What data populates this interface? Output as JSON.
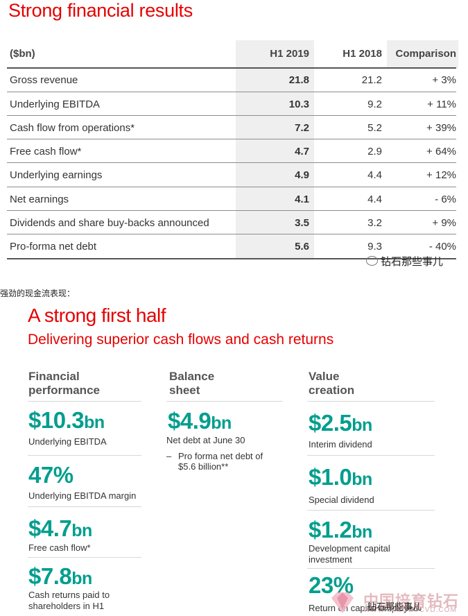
{
  "title": "Strong financial results",
  "table": {
    "headers": [
      "($bn)",
      "H1 2019",
      "H1 2018",
      "Comparison"
    ],
    "rows": [
      {
        "label": "Gross revenue",
        "h1_2019": "21.8",
        "h1_2018": "21.2",
        "comparison": "+ 3%"
      },
      {
        "label": "Underlying EBITDA",
        "h1_2019": "10.3",
        "h1_2018": "9.2",
        "comparison": "+ 11%"
      },
      {
        "label": "Cash flow from operations*",
        "h1_2019": "7.2",
        "h1_2018": "5.2",
        "comparison": "+ 39%"
      },
      {
        "label": "Free cash flow*",
        "h1_2019": "4.7",
        "h1_2018": "2.9",
        "comparison": "+ 64%"
      },
      {
        "label": "Underlying earnings",
        "h1_2019": "4.9",
        "h1_2018": "4.4",
        "comparison": "+ 12%"
      },
      {
        "label": "Net earnings",
        "h1_2019": "4.1",
        "h1_2018": "4.4",
        "comparison": "- 6%"
      },
      {
        "label": "Dividends and share buy-backs announced",
        "h1_2019": "3.5",
        "h1_2018": "3.2",
        "comparison": "+ 9%"
      },
      {
        "label": "Pro-forma net debt",
        "h1_2019": "5.6",
        "h1_2018": "9.3",
        "comparison": "- 40%"
      }
    ]
  },
  "watermark_1": "钻石那些事儿",
  "chinese_caption": "强劲的现金流表现：",
  "slide2": {
    "title": "A strong first half",
    "subtitle": "Delivering superior cash flows and cash returns",
    "col1": {
      "heading_1": "Financial",
      "heading_2": "performance",
      "items": [
        {
          "value": "$10.3",
          "unit": "bn",
          "caption_1": "Underlying EBITDA",
          "caption_2": ""
        },
        {
          "value": "47%",
          "unit": "",
          "caption_1": "Underlying EBITDA margin",
          "caption_2": ""
        },
        {
          "value": "$4.7",
          "unit": "bn",
          "caption_1": "Free cash flow*",
          "caption_2": ""
        },
        {
          "value": "$7.8",
          "unit": "bn",
          "caption_1": "Cash returns paid to",
          "caption_2": "shareholders in H1"
        }
      ]
    },
    "col2": {
      "heading_1": "Balance",
      "heading_2": "sheet",
      "value": "$4.9",
      "unit": "bn",
      "caption": "Net debt at June 30",
      "bullet_dash": "–",
      "bullet_1": "Pro forma net debt of",
      "bullet_2": "$5.6 billion**"
    },
    "col3": {
      "heading_1": "Value",
      "heading_2": "creation",
      "items": [
        {
          "value": "$2.5",
          "unit": "bn",
          "caption_1": "Interim dividend",
          "caption_2": ""
        },
        {
          "value": "$1.0",
          "unit": "bn",
          "caption_1": "Special dividend",
          "caption_2": ""
        },
        {
          "value": "$1.2",
          "unit": "bn",
          "caption_1": "Development capital",
          "caption_2": "investment"
        },
        {
          "value": "23%",
          "unit": "",
          "caption_1": "Return on capital employed",
          "caption_2": ""
        }
      ]
    }
  },
  "watermark_2": "中国培育钻石网",
  "watermark_2_url": "WWW.LABGHTCVD.COM",
  "watermark_3": "钻石那些事儿"
}
